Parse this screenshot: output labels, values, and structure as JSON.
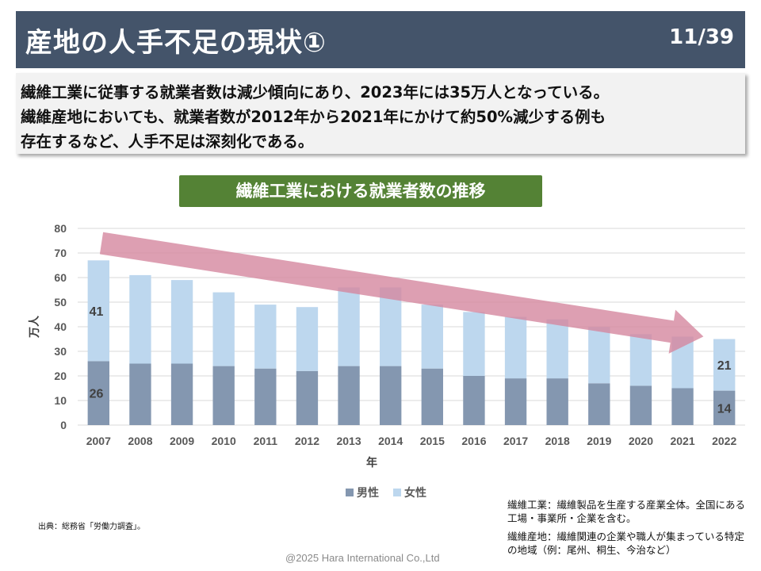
{
  "header": {
    "title": "産地の人手不足の現状①",
    "page": "11/39"
  },
  "summary": {
    "line1": "繊維工業に従事する就業者数は減少傾向にあり、2023年には35万人となっている。",
    "line2": "繊維産地においても、就業者数が2012年から2021年にかけて約50%減少する例も",
    "line3": "存在するなど、人手不足は深刻化である。"
  },
  "chart_data": {
    "type": "bar",
    "stacked": true,
    "title": "繊維工業における就業者数の推移",
    "xlabel": "年",
    "ylabel": "万人",
    "ylim": [
      0,
      80
    ],
    "yticks": [
      0,
      10,
      20,
      30,
      40,
      50,
      60,
      70,
      80
    ],
    "grid": true,
    "legend_position": "bottom",
    "categories": [
      "2007",
      "2008",
      "2009",
      "2010",
      "2011",
      "2012",
      "2013",
      "2014",
      "2015",
      "2016",
      "2017",
      "2018",
      "2019",
      "2020",
      "2021",
      "2022"
    ],
    "series": [
      {
        "name": "男性",
        "color": "#8497b0",
        "values": [
          26,
          25,
          25,
          24,
          23,
          22,
          24,
          24,
          23,
          20,
          19,
          19,
          17,
          16,
          15,
          14
        ]
      },
      {
        "name": "女性",
        "color": "#bdd7ee",
        "values": [
          41,
          36,
          34,
          30,
          26,
          26,
          32,
          32,
          26,
          26,
          25,
          24,
          23,
          21,
          21,
          21
        ]
      }
    ],
    "data_labels": [
      {
        "category": "2007",
        "series": "男性",
        "text": "26"
      },
      {
        "category": "2007",
        "series": "女性",
        "text": "41"
      },
      {
        "category": "2022",
        "series": "男性",
        "text": "14"
      },
      {
        "category": "2022",
        "series": "女性",
        "text": "21"
      }
    ],
    "trend_arrow_color": "#d5879f"
  },
  "source": "出典：総務省「労働力調査」。",
  "notes": {
    "note1": "繊維工業：繊維製品を生産する産業全体。全国にある工場・事業所・企業を含む。",
    "note2": "繊維産地：繊維関連の企業や職人が集まっている特定の地域（例：尾州、桐生、今治など）"
  },
  "copyright": "@2025 Hara International Co.,Ltd"
}
